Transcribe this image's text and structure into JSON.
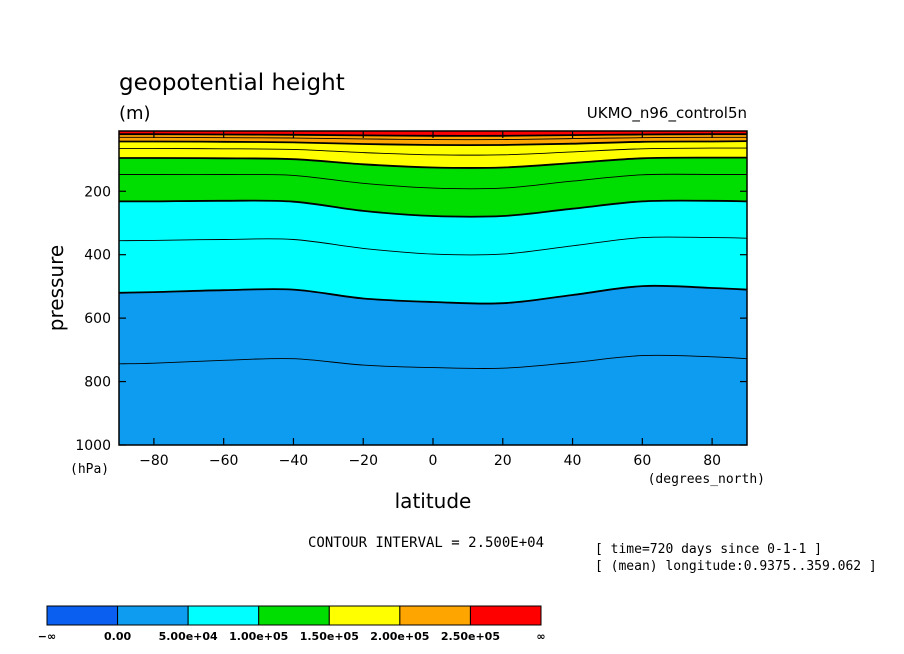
{
  "chart_data": {
    "type": "contour",
    "title": "geopotential height",
    "units": "(m)",
    "dataset": "UKMO_n96_control5n",
    "xlabel": "latitude",
    "x_units": "(degrees_north)",
    "ylabel": "pressure",
    "y_units": "(hPa)",
    "xlim": [
      -90,
      90
    ],
    "ylim": [
      1000,
      10
    ],
    "y_inverted": true,
    "x_ticks": [
      -80,
      -60,
      -40,
      -20,
      0,
      20,
      40,
      60,
      80
    ],
    "x_tick_labels": [
      "−80",
      "−60",
      "−40",
      "−20",
      "0",
      "20",
      "40",
      "60",
      "80"
    ],
    "y_ticks": [
      200,
      400,
      600,
      800,
      1000
    ],
    "y_tick_labels": [
      "200",
      "400",
      "600",
      "800",
      "1000"
    ],
    "contour_interval_text": "CONTOUR INTERVAL = 2.500E+04",
    "contour_interval": 25000,
    "notes": [
      "[ time=720 days since 0-1-1 ]",
      "[ (mean) longitude:0.9375..359.062 ]"
    ],
    "latitudes": [
      -90,
      -80,
      -60,
      -40,
      -20,
      0,
      20,
      40,
      60,
      80,
      90
    ],
    "levels": [
      {
        "value": 25000,
        "pressure": [
          744,
          742,
          733,
          728,
          748,
          756,
          758,
          740,
          718,
          722,
          728
        ]
      },
      {
        "value": 50000,
        "pressure": [
          520,
          518,
          512,
          510,
          538,
          549,
          553,
          527,
          499,
          505,
          510
        ]
      },
      {
        "value": 75000,
        "pressure": [
          356,
          355,
          352,
          352,
          380,
          398,
          398,
          372,
          346,
          346,
          348
        ]
      },
      {
        "value": 100000,
        "pressure": [
          232,
          232,
          230,
          233,
          262,
          278,
          278,
          255,
          232,
          230,
          232
        ]
      },
      {
        "value": 125000,
        "pressure": [
          147,
          147,
          147,
          150,
          175,
          190,
          190,
          168,
          148,
          147,
          147
        ]
      },
      {
        "value": 150000,
        "pressure": [
          95,
          95,
          96,
          99,
          115,
          125,
          125,
          111,
          96,
          94,
          94
        ]
      },
      {
        "value": 175000,
        "pressure": [
          65,
          65,
          66,
          68,
          78,
          85,
          85,
          76,
          66,
          64,
          64
        ]
      },
      {
        "value": 200000,
        "pressure": [
          43,
          43,
          44,
          46,
          51,
          54,
          54,
          50,
          44,
          43,
          42
        ]
      },
      {
        "value": 225000,
        "pressure": [
          30,
          30,
          31,
          32,
          35,
          37,
          37,
          34,
          31,
          30,
          30
        ]
      },
      {
        "value": 250000,
        "pressure": [
          20,
          20,
          21,
          22,
          24,
          25,
          25,
          23,
          21,
          20,
          20
        ]
      }
    ],
    "bold_levels": [
      50000,
      100000,
      150000,
      200000,
      250000
    ],
    "colorbar": {
      "colors": [
        "#0a5ff0",
        "#0d9cf0",
        "#00ffff",
        "#00dd00",
        "#ffff00",
        "#ffa500",
        "#ff0000"
      ],
      "labels": [
        "−∞",
        "0.00",
        "5.00e+04",
        "1.00e+05",
        "1.50e+05",
        "2.00e+05",
        "2.50e+05",
        "∞"
      ],
      "boundaries": [
        null,
        0,
        50000,
        100000,
        150000,
        200000,
        250000,
        null
      ]
    }
  }
}
